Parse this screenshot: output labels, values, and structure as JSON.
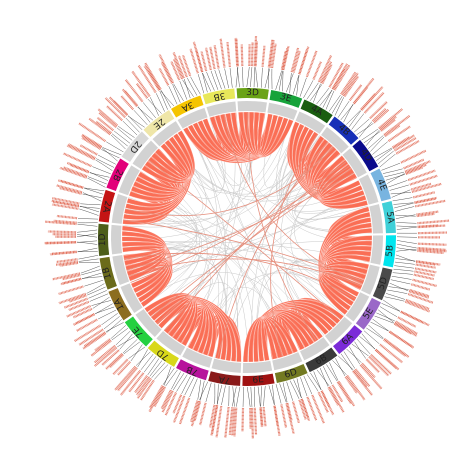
{
  "diagram": {
    "type": "circos",
    "colors": {
      "intra_links": "#fa6e55",
      "inter_links": "#c9c9c9",
      "cross_links": "#e6907e",
      "track_gray": "#d2d2d2",
      "gene_label": "#e06a55",
      "leader_line": "#111111"
    },
    "chromosomes": [
      {
        "id": "1A",
        "label": "1A",
        "color": "#8c6d1f"
      },
      {
        "id": "1B",
        "label": "1B",
        "color": "#6b6b1a"
      },
      {
        "id": "1D",
        "label": "1D",
        "color": "#4d5e1a"
      },
      {
        "id": "2A",
        "label": "2A",
        "color": "#c41414"
      },
      {
        "id": "2B",
        "label": "2B",
        "color": "#e2007a"
      },
      {
        "id": "2D",
        "label": "2D",
        "color": "#d8d8d8"
      },
      {
        "id": "2E",
        "label": "2E",
        "color": "#efe6a8"
      },
      {
        "id": "3A",
        "label": "3A",
        "color": "#f5c400"
      },
      {
        "id": "3B",
        "label": "3B",
        "color": "#e8e85a"
      },
      {
        "id": "3D",
        "label": "3D",
        "color": "#6aa316"
      },
      {
        "id": "3E",
        "label": "3E",
        "color": "#17a33a"
      },
      {
        "id": "4A",
        "label": "4A",
        "color": "#1a5e10"
      },
      {
        "id": "4B",
        "label": "4B",
        "color": "#1730b8"
      },
      {
        "id": "4D",
        "label": "4D",
        "color": "#0b0b8c"
      },
      {
        "id": "4E",
        "label": "4E",
        "color": "#78b4e0"
      },
      {
        "id": "5A",
        "label": "5A",
        "color": "#3fd0d8"
      },
      {
        "id": "5B",
        "label": "5B",
        "color": "#00e5ee"
      },
      {
        "id": "5D",
        "label": "5D",
        "color": "#4a4a4a"
      },
      {
        "id": "5E",
        "label": "5E",
        "color": "#9a68c8"
      },
      {
        "id": "6A",
        "label": "6A",
        "color": "#7b2bd8"
      },
      {
        "id": "6B",
        "label": "6B",
        "color": "#3a3a3a"
      },
      {
        "id": "6D",
        "label": "6D",
        "color": "#737a22"
      },
      {
        "id": "6E",
        "label": "6E",
        "color": "#a01212"
      },
      {
        "id": "7A",
        "label": "7A",
        "color": "#8a1a1a"
      },
      {
        "id": "7B",
        "label": "7B",
        "color": "#b7129c"
      },
      {
        "id": "7D",
        "label": "7D",
        "color": "#d8d81a"
      },
      {
        "id": "7E",
        "label": "7E",
        "color": "#25d040"
      }
    ],
    "intra_link_pairs": [
      [
        "1A",
        "1D"
      ],
      [
        "2A",
        "2E"
      ],
      [
        "3A",
        "3E"
      ],
      [
        "4A",
        "4E"
      ],
      [
        "5A",
        "5E"
      ],
      [
        "6A",
        "6E"
      ],
      [
        "7A",
        "7E"
      ]
    ],
    "gene_label_count": 260
  }
}
